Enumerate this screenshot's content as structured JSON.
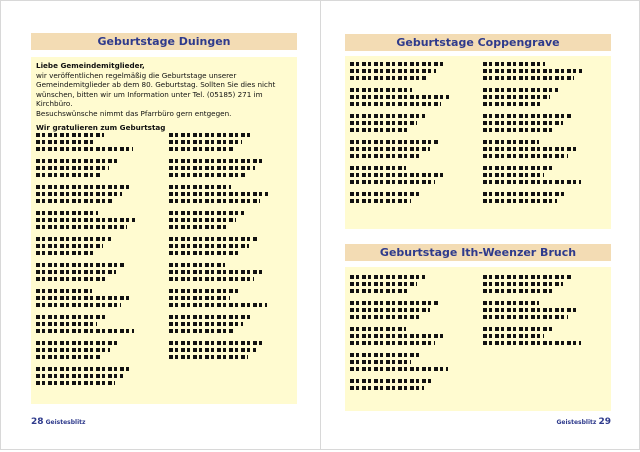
{
  "left_page": {
    "title": "Geburtstage Duingen",
    "greeting": "Liebe Gemeindemitglieder,",
    "intro": "wir veröffentlichen regelmäßig die Geburtstage unserer Gemeindemitglieder ab dem 80. Geburtstag. Sollten Sie dies nicht wünschen, bitten wir um Information unter Tel. (05185) 271 im Kirchbüro.",
    "visits": "Besuchswünsche nimmt das Pfarrbüro gern entgegen.",
    "subheading": "Wir gratulieren zum Geburtstag",
    "page_number": "28",
    "magazine": "Geistesblitz"
  },
  "right_page": {
    "title_1": "Geburtstage Coppengrave",
    "title_2": "Geburtstage Ith-Weenzer Bruch",
    "page_number": "29",
    "magazine": "Geistesblitz"
  },
  "colors": {
    "title_bg": "#f3dcb4",
    "box_bg": "#fffbd0",
    "title_text": "#2e3a8c"
  }
}
